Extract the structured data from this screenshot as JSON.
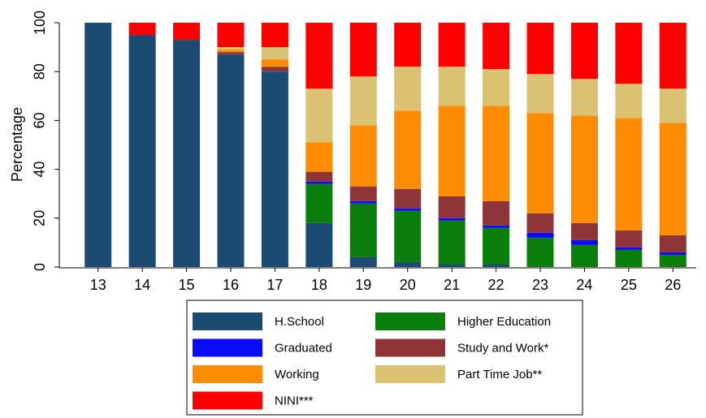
{
  "chart_data": {
    "type": "stacked-bar",
    "y_label": "Percentage",
    "categories": [
      "13",
      "14",
      "15",
      "16",
      "17",
      "18",
      "19",
      "20",
      "21",
      "22",
      "23",
      "24",
      "25",
      "26"
    ],
    "ylim": [
      0,
      100
    ],
    "yticks": [
      0,
      20,
      40,
      60,
      80,
      100
    ],
    "series": [
      {
        "name": "H.School",
        "color": "#1b4a73",
        "values": [
          100,
          95,
          93,
          87,
          80,
          18,
          4,
          2,
          1,
          1,
          0,
          0,
          0,
          0
        ]
      },
      {
        "name": "Higher Education",
        "color": "#0b7f0b",
        "values": [
          0,
          0,
          0,
          0,
          0,
          16,
          22,
          21,
          18,
          15,
          12,
          9,
          7,
          5
        ]
      },
      {
        "name": "Graduated",
        "color": "#0a0aff",
        "values": [
          0,
          0,
          0,
          0,
          0,
          1,
          1,
          1,
          1,
          1,
          2,
          2,
          1,
          1
        ]
      },
      {
        "name": "Study and Work*",
        "color": "#8f3538",
        "values": [
          0,
          0,
          0,
          1,
          2,
          4,
          6,
          8,
          9,
          10,
          8,
          7,
          7,
          7
        ]
      },
      {
        "name": "Working",
        "color": "#ff8c00",
        "values": [
          0,
          0,
          0,
          1,
          3,
          12,
          25,
          32,
          37,
          39,
          41,
          44,
          46,
          46
        ]
      },
      {
        "name": "Part Time Job**",
        "color": "#dbc273",
        "values": [
          0,
          0,
          0,
          1,
          5,
          22,
          20,
          18,
          16,
          15,
          16,
          15,
          14,
          14
        ]
      },
      {
        "name": "NINI***",
        "color": "#ff0000",
        "values": [
          0,
          5,
          7,
          10,
          10,
          27,
          22,
          18,
          18,
          19,
          21,
          23,
          25,
          27
        ]
      }
    ]
  }
}
